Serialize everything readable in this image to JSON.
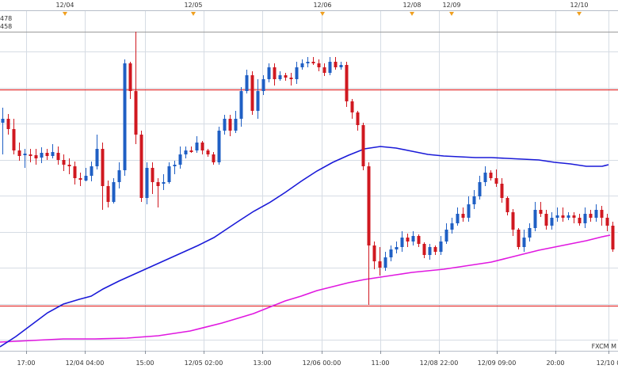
{
  "chart_data": {
    "type": "candlestick",
    "grid": true,
    "legend": [
      {
        "label": "478",
        "color": "#2a2ad8"
      },
      {
        "label": "458",
        "color": "#e020e0"
      }
    ],
    "watermark": "FXCM M",
    "colors": {
      "up": "#1f5fc4",
      "down": "#d01820",
      "ma_long": "#1a1ad8",
      "ma_short": "#e018e0",
      "hline": "#e23030",
      "hline_top": "#9a9a9a",
      "marker": "#f0a020",
      "grid": "#d6dce4"
    },
    "top_axis_labels": [
      {
        "label": "12/04",
        "at": 82
      },
      {
        "label": "12/05",
        "at": 244
      },
      {
        "label": "12/06",
        "at": 407
      },
      {
        "label": "12/08",
        "at": 520
      },
      {
        "label": "12/09",
        "at": 570
      },
      {
        "label": "12/10",
        "at": 731
      }
    ],
    "bottom_axis_labels": [
      {
        "label": "17:00",
        "at": 33
      },
      {
        "label": "12/04 04:00",
        "at": 107
      },
      {
        "label": "15:00",
        "at": 183
      },
      {
        "label": "12/05 02:00",
        "at": 257
      },
      {
        "label": "13:00",
        "at": 331
      },
      {
        "label": "12/06 00:00",
        "at": 406
      },
      {
        "label": "11:00",
        "at": 480
      },
      {
        "label": "12/08 22:00",
        "at": 554
      },
      {
        "label": "12/09 09:00",
        "at": 627
      },
      {
        "label": "20:00",
        "at": 701
      },
      {
        "label": "12/10 0",
        "at": 768
      }
    ],
    "horizontal_lines": [
      {
        "y": 40,
        "kind": "top"
      },
      {
        "y": 113,
        "kind": "red"
      },
      {
        "y": 386,
        "kind": "red"
      }
    ],
    "candles": [
      [
        0,
        155,
        150,
        142,
        136,
        195
      ],
      [
        1,
        150,
        163,
        148,
        144,
        170
      ],
      [
        2,
        163,
        190,
        160,
        150,
        195
      ],
      [
        3,
        190,
        197,
        188,
        180,
        203
      ],
      [
        4,
        196,
        194,
        200,
        188,
        212
      ],
      [
        5,
        195,
        197,
        198,
        188,
        205
      ],
      [
        6,
        196,
        200,
        205,
        188,
        208
      ],
      [
        7,
        199,
        193,
        193,
        186,
        206
      ],
      [
        8,
        193,
        197,
        200,
        188,
        202
      ],
      [
        9,
        197,
        192,
        191,
        182,
        200
      ],
      [
        10,
        193,
        202,
        205,
        185,
        208
      ],
      [
        11,
        202,
        208,
        212,
        195,
        216
      ],
      [
        12,
        208,
        208,
        206,
        200,
        220
      ],
      [
        13,
        210,
        225,
        225,
        204,
        233
      ],
      [
        14,
        225,
        227,
        226,
        218,
        235
      ],
      [
        15,
        228,
        222,
        220,
        212,
        229
      ],
      [
        16,
        222,
        210,
        210,
        204,
        229
      ],
      [
        17,
        210,
        188,
        188,
        170,
        214
      ],
      [
        18,
        188,
        235,
        237,
        180,
        265
      ],
      [
        19,
        235,
        255,
        258,
        228,
        262
      ],
      [
        20,
        255,
        230,
        230,
        225,
        257
      ],
      [
        21,
        230,
        215,
        217,
        205,
        238
      ],
      [
        22,
        215,
        80,
        80,
        75,
        222
      ],
      [
        23,
        80,
        115,
        118,
        78,
        125
      ],
      [
        24,
        115,
        170,
        175,
        40,
        182
      ],
      [
        25,
        170,
        250,
        252,
        165,
        255
      ],
      [
        26,
        250,
        212,
        214,
        205,
        258
      ],
      [
        27,
        212,
        230,
        230,
        205,
        245
      ],
      [
        28,
        230,
        235,
        237,
        225,
        262
      ],
      [
        29,
        232,
        230,
        228,
        220,
        240
      ],
      [
        30,
        230,
        210,
        210,
        205,
        232
      ],
      [
        31,
        210,
        208,
        208,
        203,
        220
      ],
      [
        32,
        208,
        195,
        195,
        185,
        213
      ],
      [
        33,
        195,
        190,
        190,
        185,
        200
      ],
      [
        34,
        190,
        190,
        190,
        185,
        193
      ],
      [
        35,
        190,
        180,
        180,
        172,
        193
      ],
      [
        36,
        180,
        190,
        190,
        178,
        195
      ],
      [
        37,
        190,
        195,
        195,
        188,
        198
      ],
      [
        38,
        195,
        205,
        205,
        192,
        208
      ],
      [
        39,
        205,
        165,
        165,
        160,
        208
      ],
      [
        40,
        165,
        150,
        150,
        145,
        170
      ],
      [
        41,
        150,
        165,
        168,
        145,
        172
      ],
      [
        42,
        165,
        150,
        150,
        140,
        168
      ],
      [
        43,
        150,
        115,
        115,
        110,
        160
      ],
      [
        44,
        115,
        95,
        95,
        88,
        118
      ],
      [
        45,
        95,
        140,
        142,
        90,
        145
      ],
      [
        46,
        140,
        115,
        117,
        100,
        150
      ],
      [
        47,
        115,
        100,
        100,
        95,
        120
      ],
      [
        48,
        100,
        85,
        85,
        80,
        104
      ],
      [
        49,
        85,
        100,
        100,
        80,
        108
      ],
      [
        50,
        100,
        95,
        95,
        90,
        102
      ],
      [
        51,
        95,
        98,
        98,
        92,
        102
      ],
      [
        52,
        98,
        100,
        100,
        92,
        108
      ],
      [
        53,
        100,
        85,
        85,
        78,
        106
      ],
      [
        54,
        85,
        80,
        80,
        75,
        88
      ],
      [
        55,
        80,
        78,
        78,
        72,
        85
      ],
      [
        56,
        78,
        80,
        80,
        72,
        82
      ],
      [
        57,
        80,
        85,
        85,
        75,
        90
      ],
      [
        58,
        85,
        92,
        92,
        80,
        96
      ],
      [
        59,
        92,
        78,
        78,
        72,
        95
      ],
      [
        60,
        78,
        85,
        85,
        72,
        88
      ],
      [
        61,
        85,
        82,
        82,
        78,
        88
      ],
      [
        62,
        82,
        128,
        128,
        78,
        135
      ],
      [
        63,
        128,
        142,
        142,
        125,
        150
      ],
      [
        64,
        142,
        158,
        158,
        140,
        165
      ],
      [
        65,
        158,
        210,
        210,
        155,
        215
      ],
      [
        66,
        210,
        310,
        310,
        205,
        385
      ],
      [
        67,
        310,
        330,
        330,
        305,
        340
      ],
      [
        68,
        330,
        338,
        338,
        312,
        348
      ],
      [
        69,
        338,
        325,
        325,
        318,
        342
      ],
      [
        70,
        325,
        315,
        315,
        310,
        330
      ],
      [
        71,
        315,
        312,
        312,
        305,
        320
      ],
      [
        72,
        312,
        300,
        300,
        292,
        318
      ],
      [
        73,
        300,
        305,
        305,
        295,
        312
      ],
      [
        74,
        305,
        298,
        298,
        292,
        310
      ],
      [
        75,
        298,
        308,
        308,
        296,
        312
      ],
      [
        76,
        308,
        322,
        322,
        306,
        326
      ],
      [
        77,
        322,
        312,
        312,
        308,
        328
      ],
      [
        78,
        312,
        318,
        318,
        310,
        322
      ],
      [
        79,
        318,
        305,
        305,
        298,
        322
      ],
      [
        80,
        305,
        290,
        290,
        282,
        308
      ],
      [
        81,
        290,
        282,
        282,
        275,
        295
      ],
      [
        82,
        282,
        270,
        270,
        262,
        285
      ],
      [
        83,
        270,
        275,
        275,
        262,
        280
      ],
      [
        84,
        275,
        258,
        258,
        248,
        280
      ],
      [
        85,
        258,
        248,
        248,
        240,
        264
      ],
      [
        86,
        248,
        230,
        230,
        222,
        252
      ],
      [
        87,
        230,
        218,
        218,
        210,
        235
      ],
      [
        88,
        218,
        225,
        225,
        215,
        228
      ],
      [
        89,
        225,
        232,
        232,
        214,
        236
      ],
      [
        90,
        232,
        250,
        250,
        225,
        256
      ],
      [
        91,
        250,
        268,
        268,
        248,
        272
      ],
      [
        92,
        268,
        290,
        290,
        264,
        298
      ],
      [
        93,
        290,
        312,
        312,
        288,
        315
      ],
      [
        94,
        312,
        300,
        300,
        290,
        318
      ],
      [
        95,
        300,
        288,
        288,
        282,
        305
      ],
      [
        96,
        288,
        265,
        265,
        255,
        292
      ],
      [
        97,
        265,
        270,
        270,
        255,
        274
      ],
      [
        98,
        270,
        285,
        285,
        265,
        290
      ],
      [
        99,
        285,
        275,
        275,
        268,
        290
      ],
      [
        100,
        275,
        272,
        272,
        262,
        280
      ],
      [
        101,
        272,
        275,
        275,
        262,
        280
      ],
      [
        102,
        275,
        272,
        272,
        268,
        278
      ],
      [
        103,
        272,
        275,
        275,
        268,
        282
      ],
      [
        104,
        275,
        282,
        282,
        270,
        285
      ],
      [
        105,
        282,
        270,
        270,
        262,
        288
      ],
      [
        106,
        270,
        275,
        275,
        265,
        280
      ],
      [
        107,
        275,
        265,
        265,
        258,
        280
      ],
      [
        108,
        265,
        275,
        275,
        260,
        285
      ],
      [
        109,
        275,
        285,
        285,
        270,
        292
      ],
      [
        110,
        285,
        315,
        315,
        280,
        318
      ]
    ],
    "ma_long": [
      [
        0,
        438
      ],
      [
        20,
        425
      ],
      [
        40,
        410
      ],
      [
        60,
        395
      ],
      [
        80,
        384
      ],
      [
        100,
        378
      ],
      [
        115,
        374
      ],
      [
        130,
        365
      ],
      [
        150,
        355
      ],
      [
        170,
        346
      ],
      [
        190,
        337
      ],
      [
        210,
        328
      ],
      [
        230,
        319
      ],
      [
        250,
        310
      ],
      [
        270,
        300
      ],
      [
        285,
        290
      ],
      [
        300,
        280
      ],
      [
        320,
        267
      ],
      [
        340,
        256
      ],
      [
        360,
        243
      ],
      [
        380,
        229
      ],
      [
        400,
        216
      ],
      [
        420,
        205
      ],
      [
        440,
        196
      ],
      [
        460,
        188
      ],
      [
        480,
        185
      ],
      [
        500,
        187
      ],
      [
        520,
        191
      ],
      [
        540,
        195
      ],
      [
        560,
        197
      ],
      [
        580,
        198
      ],
      [
        600,
        199
      ],
      [
        620,
        199
      ],
      [
        640,
        200
      ],
      [
        660,
        201
      ],
      [
        680,
        202
      ],
      [
        700,
        205
      ],
      [
        720,
        207
      ],
      [
        740,
        210
      ],
      [
        760,
        210
      ],
      [
        768,
        208
      ]
    ],
    "ma_short": [
      [
        0,
        432
      ],
      [
        40,
        430
      ],
      [
        80,
        428
      ],
      [
        120,
        428
      ],
      [
        160,
        427
      ],
      [
        200,
        424
      ],
      [
        240,
        418
      ],
      [
        280,
        408
      ],
      [
        300,
        402
      ],
      [
        320,
        396
      ],
      [
        340,
        388
      ],
      [
        360,
        380
      ],
      [
        380,
        374
      ],
      [
        400,
        367
      ],
      [
        420,
        362
      ],
      [
        440,
        357
      ],
      [
        460,
        353
      ],
      [
        480,
        350
      ],
      [
        500,
        347
      ],
      [
        520,
        344
      ],
      [
        540,
        342
      ],
      [
        560,
        340
      ],
      [
        580,
        337
      ],
      [
        600,
        334
      ],
      [
        620,
        331
      ],
      [
        640,
        326
      ],
      [
        660,
        321
      ],
      [
        680,
        316
      ],
      [
        700,
        312
      ],
      [
        720,
        308
      ],
      [
        740,
        304
      ],
      [
        760,
        299
      ],
      [
        770,
        297
      ]
    ]
  }
}
